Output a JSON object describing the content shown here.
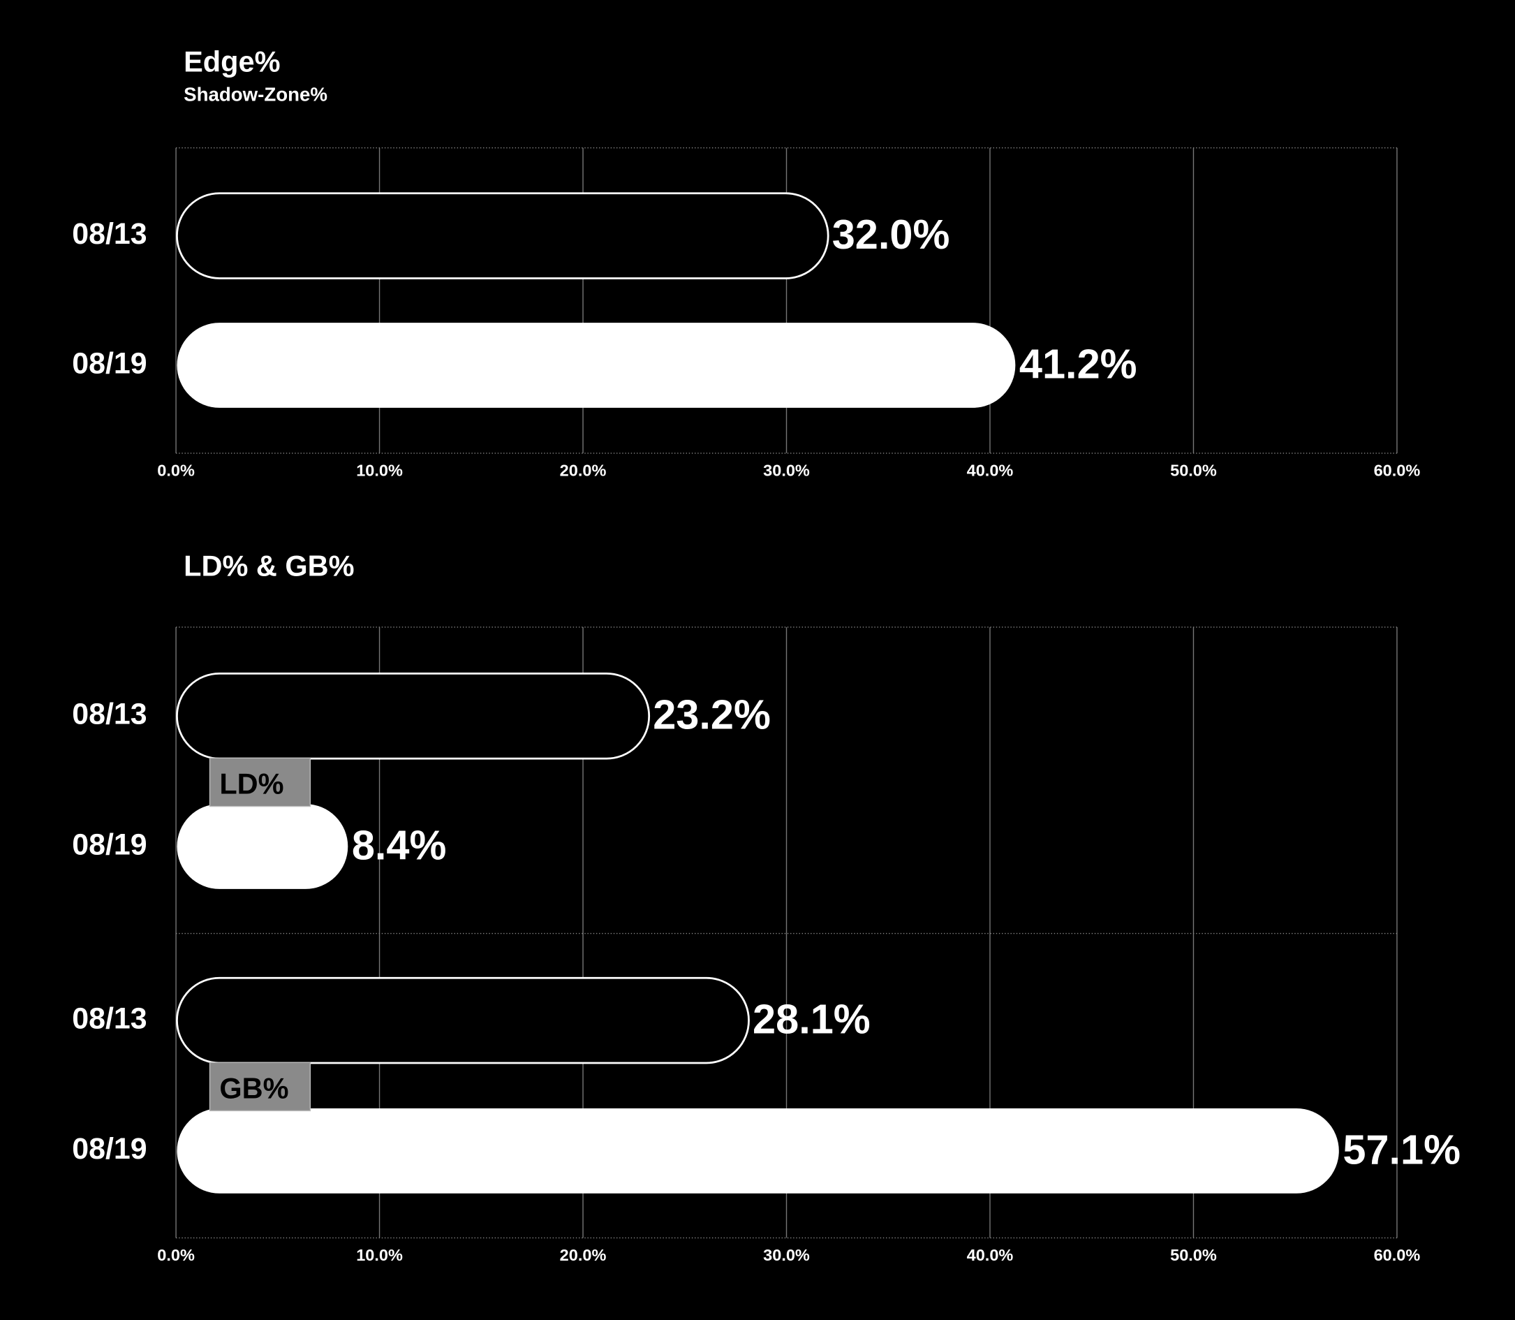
{
  "chart_data": [
    {
      "type": "bar",
      "orientation": "horizontal",
      "title": "Edge%",
      "subtitle": "Shadow-Zone%",
      "categories": [
        "08/13",
        "08/19"
      ],
      "values": [
        32.0,
        41.2
      ],
      "value_labels": [
        "32.0%",
        "41.2%"
      ],
      "color": "#ffffff",
      "xlim": [
        0,
        60
      ],
      "xticks": [
        {
          "value": 0,
          "label": "0.0%"
        },
        {
          "value": 10,
          "label": "10.0%"
        },
        {
          "value": 20,
          "label": "20.0%"
        },
        {
          "value": 30,
          "label": "30.0%"
        },
        {
          "value": 40,
          "label": "40.0%"
        },
        {
          "value": 50,
          "label": "50.0%"
        },
        {
          "value": 60,
          "label": "60.0%"
        }
      ],
      "grid": true
    },
    {
      "type": "bar",
      "orientation": "horizontal",
      "title": "LD% & GB%",
      "categories": [
        "08/13",
        "08/19"
      ],
      "series": [
        {
          "name": "LD%",
          "color": "#ffffff",
          "values": [
            23.2,
            8.4
          ],
          "value_labels": [
            "23.2%",
            "8.4%"
          ]
        },
        {
          "name": "GB%",
          "color": "#ffffff",
          "values": [
            28.1,
            57.1
          ],
          "value_labels": [
            "28.1%",
            "57.1%"
          ]
        }
      ],
      "xlim": [
        0,
        60
      ],
      "xticks": [
        {
          "value": 0,
          "label": "0.0%"
        },
        {
          "value": 10,
          "label": "10.0%"
        },
        {
          "value": 20,
          "label": "20.0%"
        },
        {
          "value": 30,
          "label": "30.0%"
        },
        {
          "value": 40,
          "label": "40.0%"
        },
        {
          "value": 50,
          "label": "50.0%"
        },
        {
          "value": 60,
          "label": "60.0%"
        }
      ],
      "grid": true
    }
  ]
}
